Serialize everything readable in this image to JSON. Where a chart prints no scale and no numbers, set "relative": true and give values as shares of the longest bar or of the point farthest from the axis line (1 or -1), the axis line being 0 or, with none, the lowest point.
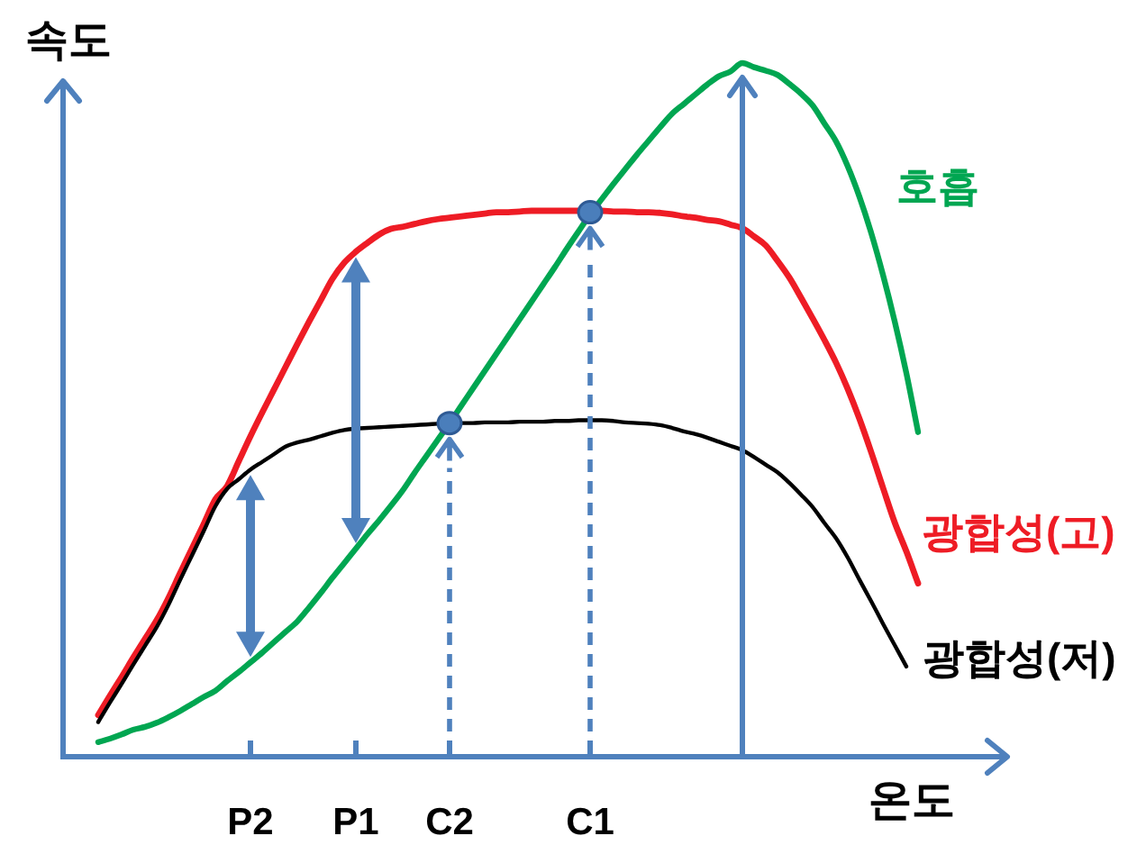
{
  "chart_data": {
    "type": "line",
    "relative": true,
    "xlabel": "온도",
    "ylabel": "속도",
    "tick_labels": "x",
    "categories": [
      null,
      null,
      null,
      null,
      null,
      null,
      null,
      null,
      null,
      null,
      null,
      null,
      null,
      "P2",
      null,
      null,
      null,
      null,
      null,
      null,
      null,
      null,
      "P1",
      null,
      null,
      null,
      null,
      null,
      null,
      null,
      "C2",
      null,
      null,
      null,
      null,
      null,
      null,
      null,
      null,
      null,
      null,
      null,
      "C1",
      null,
      null,
      null,
      null,
      null,
      null,
      null,
      null,
      null,
      null,
      null,
      null,
      null,
      null,
      null,
      null,
      null,
      null,
      null,
      null,
      null,
      null,
      null,
      null,
      null,
      null,
      null,
      null
    ],
    "series": [
      {
        "name": "호흡",
        "color": "#00a651",
        "values": [
          0.021,
          0.026,
          0.032,
          0.039,
          0.043,
          0.049,
          0.057,
          0.066,
          0.076,
          0.086,
          0.095,
          0.109,
          0.122,
          0.136,
          0.15,
          0.165,
          0.18,
          0.195,
          0.215,
          0.236,
          0.258,
          0.279,
          0.3,
          0.321,
          0.341,
          0.362,
          0.384,
          0.409,
          0.433,
          0.457,
          0.481,
          0.506,
          0.531,
          0.556,
          0.581,
          0.606,
          0.631,
          0.656,
          0.681,
          0.706,
          0.732,
          0.757,
          0.782,
          0.804,
          0.826,
          0.847,
          0.868,
          0.888,
          0.908,
          0.927,
          0.941,
          0.955,
          0.969,
          0.981,
          0.988,
          1.0,
          0.994,
          0.989,
          0.983,
          0.97,
          0.956,
          0.939,
          0.913,
          0.887,
          0.851,
          0.807,
          0.755,
          0.695,
          0.628,
          0.553,
          0.468
        ]
      },
      {
        "name": "광합성(고)",
        "color": "#ee1c25",
        "values": [
          0.06,
          0.088,
          0.115,
          0.143,
          0.17,
          0.197,
          0.229,
          0.265,
          0.3,
          0.335,
          0.371,
          0.39,
          0.426,
          0.462,
          0.496,
          0.529,
          0.562,
          0.595,
          0.627,
          0.658,
          0.689,
          0.712,
          0.728,
          0.741,
          0.753,
          0.761,
          0.764,
          0.768,
          0.772,
          0.775,
          0.777,
          0.779,
          0.781,
          0.783,
          0.785,
          0.785,
          0.786,
          0.787,
          0.787,
          0.787,
          0.787,
          0.787,
          0.787,
          0.787,
          0.786,
          0.786,
          0.785,
          0.785,
          0.784,
          0.782,
          0.779,
          0.777,
          0.774,
          0.772,
          0.767,
          0.762,
          0.75,
          0.737,
          0.715,
          0.691,
          0.662,
          0.632,
          0.601,
          0.568,
          0.53,
          0.487,
          0.439,
          0.388,
          0.338,
          0.296,
          0.25
        ]
      },
      {
        "name": "광합성(저)",
        "color": "#000000",
        "values": [
          0.05,
          0.078,
          0.105,
          0.133,
          0.16,
          0.187,
          0.219,
          0.255,
          0.29,
          0.325,
          0.361,
          0.386,
          0.4,
          0.414,
          0.425,
          0.436,
          0.447,
          0.453,
          0.457,
          0.462,
          0.467,
          0.471,
          0.473,
          0.474,
          0.475,
          0.476,
          0.477,
          0.478,
          0.479,
          0.48,
          0.481,
          0.481,
          0.481,
          0.482,
          0.482,
          0.482,
          0.483,
          0.483,
          0.483,
          0.484,
          0.484,
          0.485,
          0.485,
          0.485,
          0.484,
          0.482,
          0.481,
          0.48,
          0.478,
          0.474,
          0.469,
          0.465,
          0.46,
          0.454,
          0.448,
          0.442,
          0.432,
          0.421,
          0.41,
          0.395,
          0.378,
          0.36,
          0.337,
          0.315,
          0.287,
          0.255,
          0.224,
          0.192,
          0.161,
          0.13,
          null
        ]
      },
      {
        "type": "scatter",
        "color": "#4a7ebb",
        "values": [
          null,
          null,
          null,
          null,
          null,
          null,
          null,
          null,
          null,
          null,
          null,
          null,
          null,
          null,
          null,
          null,
          null,
          null,
          null,
          null,
          null,
          null,
          null,
          null,
          null,
          null,
          null,
          null,
          null,
          null,
          0.481,
          null,
          null,
          null,
          null,
          null,
          null,
          null,
          null,
          null,
          null,
          null,
          0.785,
          null,
          null,
          null,
          null,
          null,
          null,
          null,
          null,
          null,
          null,
          null,
          null,
          null,
          null,
          null,
          null,
          null,
          null,
          null,
          null,
          null,
          null,
          null,
          null,
          null,
          null,
          null,
          null
        ]
      }
    ]
  }
}
